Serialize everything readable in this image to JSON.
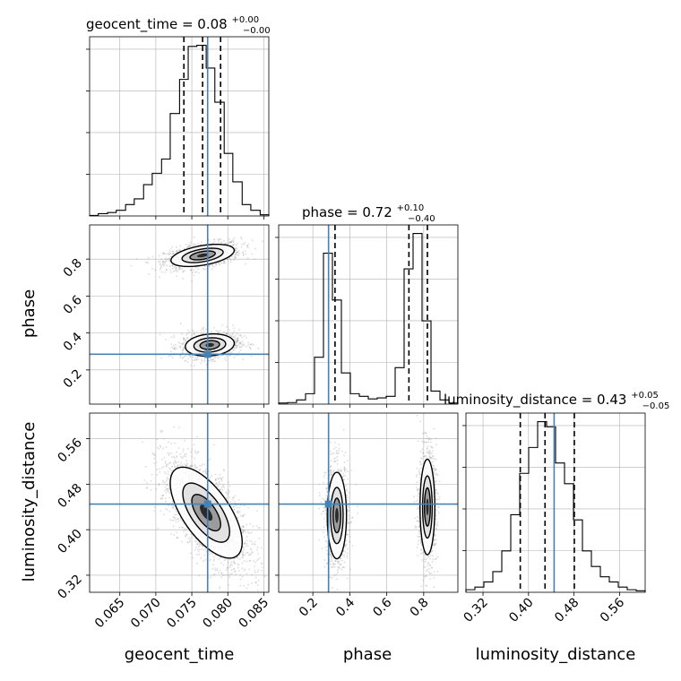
{
  "chart_data": {
    "type": "corner",
    "parameters": [
      "geocent_time",
      "phase",
      "luminosity_distance"
    ],
    "truths": {
      "geocent_time": 0.0772,
      "phase": 0.285,
      "luminosity_distance": 0.445
    },
    "marginals": {
      "geocent_time": {
        "title": "geocent_time = 0.08",
        "err_plus": "+0.00",
        "err_minus": "−0.00",
        "range": [
          0.0608,
          0.0857
        ],
        "ticks": [
          0.065,
          0.07,
          0.075,
          0.08,
          0.085
        ],
        "tick_labels": [
          "0.065",
          "0.070",
          "0.075",
          "0.080",
          "0.085"
        ],
        "quantiles": [
          0.0739,
          0.0765,
          0.079
        ],
        "bin_edges": [
          0.0608,
          0.062,
          0.0633,
          0.0645,
          0.0658,
          0.067,
          0.0683,
          0.0695,
          0.0708,
          0.072,
          0.0733,
          0.0745,
          0.0757,
          0.077,
          0.0782,
          0.0795,
          0.0807,
          0.082,
          0.0832,
          0.0845,
          0.0857
        ],
        "counts": [
          1,
          4,
          6,
          10,
          20,
          30,
          55,
          75,
          100,
          180,
          240,
          298,
          300,
          260,
          200,
          110,
          60,
          20,
          10,
          2
        ]
      },
      "phase": {
        "title": "phase = 0.72",
        "err_plus": "+0.10",
        "err_minus": "−0.40",
        "range": [
          0.015,
          0.985
        ],
        "ticks": [
          0.2,
          0.4,
          0.6,
          0.8
        ],
        "tick_labels": [
          "0.2",
          "0.4",
          "0.6",
          "0.8"
        ],
        "quantiles": [
          0.32,
          0.72,
          0.82
        ],
        "bin_edges": [
          0.015,
          0.0635,
          0.112,
          0.1605,
          0.209,
          0.2575,
          0.306,
          0.3545,
          0.403,
          0.4515,
          0.5,
          0.5485,
          0.597,
          0.6455,
          0.694,
          0.7425,
          0.791,
          0.8395,
          0.888,
          0.9365,
          0.985
        ],
        "counts": [
          2,
          3,
          8,
          20,
          90,
          290,
          200,
          60,
          20,
          15,
          10,
          12,
          15,
          70,
          260,
          328,
          160,
          25,
          8,
          2
        ]
      },
      "luminosity_distance": {
        "title": "luminosity_distance = 0.43",
        "err_plus": "+0.05",
        "err_minus": "−0.05",
        "range": [
          0.29,
          0.605
        ],
        "ticks": [
          0.32,
          0.4,
          0.48,
          0.56
        ],
        "tick_labels": [
          "0.32",
          "0.40",
          "0.48",
          "0.56"
        ],
        "quantiles": [
          0.3855,
          0.429,
          0.4805
        ],
        "bin_edges": [
          0.29,
          0.30575,
          0.3215,
          0.33725,
          0.353,
          0.36875,
          0.3845,
          0.40025,
          0.416,
          0.43175,
          0.4475,
          0.46325,
          0.479,
          0.49475,
          0.5105,
          0.52625,
          0.542,
          0.55775,
          0.5735,
          0.58925,
          0.605
        ],
        "counts": [
          5,
          10,
          20,
          40,
          80,
          150,
          230,
          280,
          330,
          320,
          250,
          210,
          140,
          80,
          50,
          30,
          20,
          10,
          5,
          3
        ]
      }
    },
    "pairs": [
      {
        "x": "geocent_time",
        "y": "phase",
        "blobs": [
          {
            "mean": [
              0.0765,
              0.82
            ],
            "std": [
              0.0022,
              0.03
            ],
            "corr": 0.45,
            "weight": 0.5
          },
          {
            "mean": [
              0.0775,
              0.335
            ],
            "std": [
              0.0017,
              0.03
            ],
            "corr": 0.15,
            "weight": 0.5
          }
        ]
      },
      {
        "x": "geocent_time",
        "y": "luminosity_distance",
        "blobs": [
          {
            "mean": [
              0.077,
              0.43
            ],
            "std": [
              0.0025,
              0.04
            ],
            "corr": -0.65,
            "weight": 1.0
          }
        ]
      },
      {
        "x": "phase",
        "y": "luminosity_distance",
        "blobs": [
          {
            "mean": [
              0.33,
              0.425
            ],
            "std": [
              0.026,
              0.038
            ],
            "corr": 0.0,
            "weight": 0.5
          },
          {
            "mean": [
              0.82,
              0.44
            ],
            "std": [
              0.02,
              0.042
            ],
            "corr": 0.0,
            "weight": 0.5
          }
        ]
      }
    ],
    "axis_labels": {
      "x": [
        "geocent_time",
        "phase",
        "luminosity_distance"
      ],
      "y": [
        "phase",
        "luminosity_distance"
      ]
    },
    "grid": true,
    "colors": {
      "truth": "#4682b4",
      "hist": "#000000",
      "grid": "#b0b0b0",
      "scatter": "#9a9a9a"
    }
  }
}
